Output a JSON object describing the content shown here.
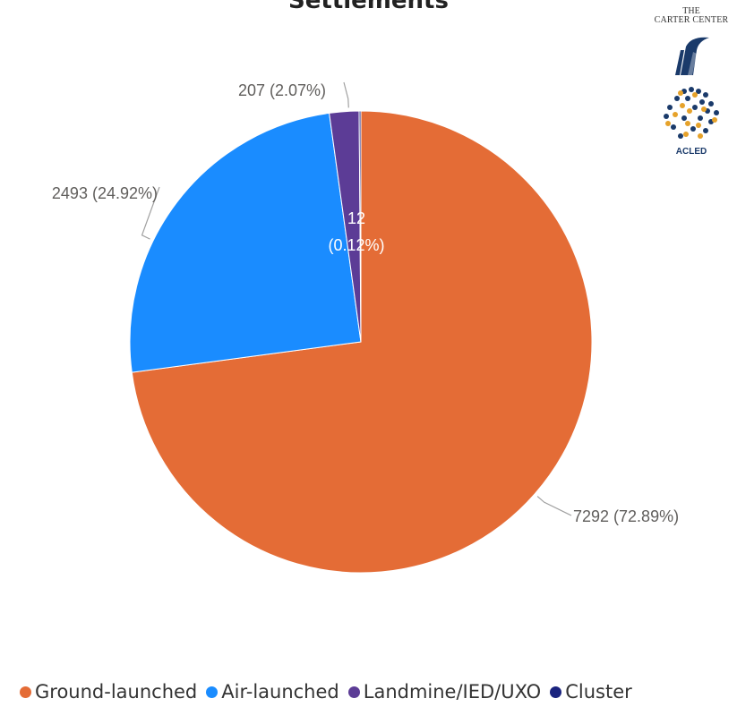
{
  "chart_data": {
    "type": "pie",
    "title": "Settlements",
    "categories": [
      "Ground-launched",
      "Air-launched",
      "Landmine/IED/UXO",
      "Cluster"
    ],
    "values": [
      7292,
      2493,
      207,
      12
    ],
    "percentages": [
      72.89,
      24.92,
      2.07,
      0.12
    ],
    "data_labels": [
      "7292 (72.89%)",
      "2493 (24.92%)",
      "207 (2.07%)",
      "12 (0.12%)"
    ],
    "colors": [
      "#e46c36",
      "#1a8cff",
      "#5c3c96",
      "#1a237e"
    ],
    "legend_position": "bottom"
  },
  "legend": {
    "items": [
      {
        "label": "Ground-launched",
        "color": "#e46c36"
      },
      {
        "label": "Air-launched",
        "color": "#1a8cff"
      },
      {
        "label": "Landmine/IED/UXO",
        "color": "#5c3c96"
      },
      {
        "label": "Cluster",
        "color": "#1a237e"
      }
    ]
  },
  "logos": {
    "carter_line1": "THE",
    "carter_line2": "CARTER CENTER",
    "acled": "ACLED"
  }
}
